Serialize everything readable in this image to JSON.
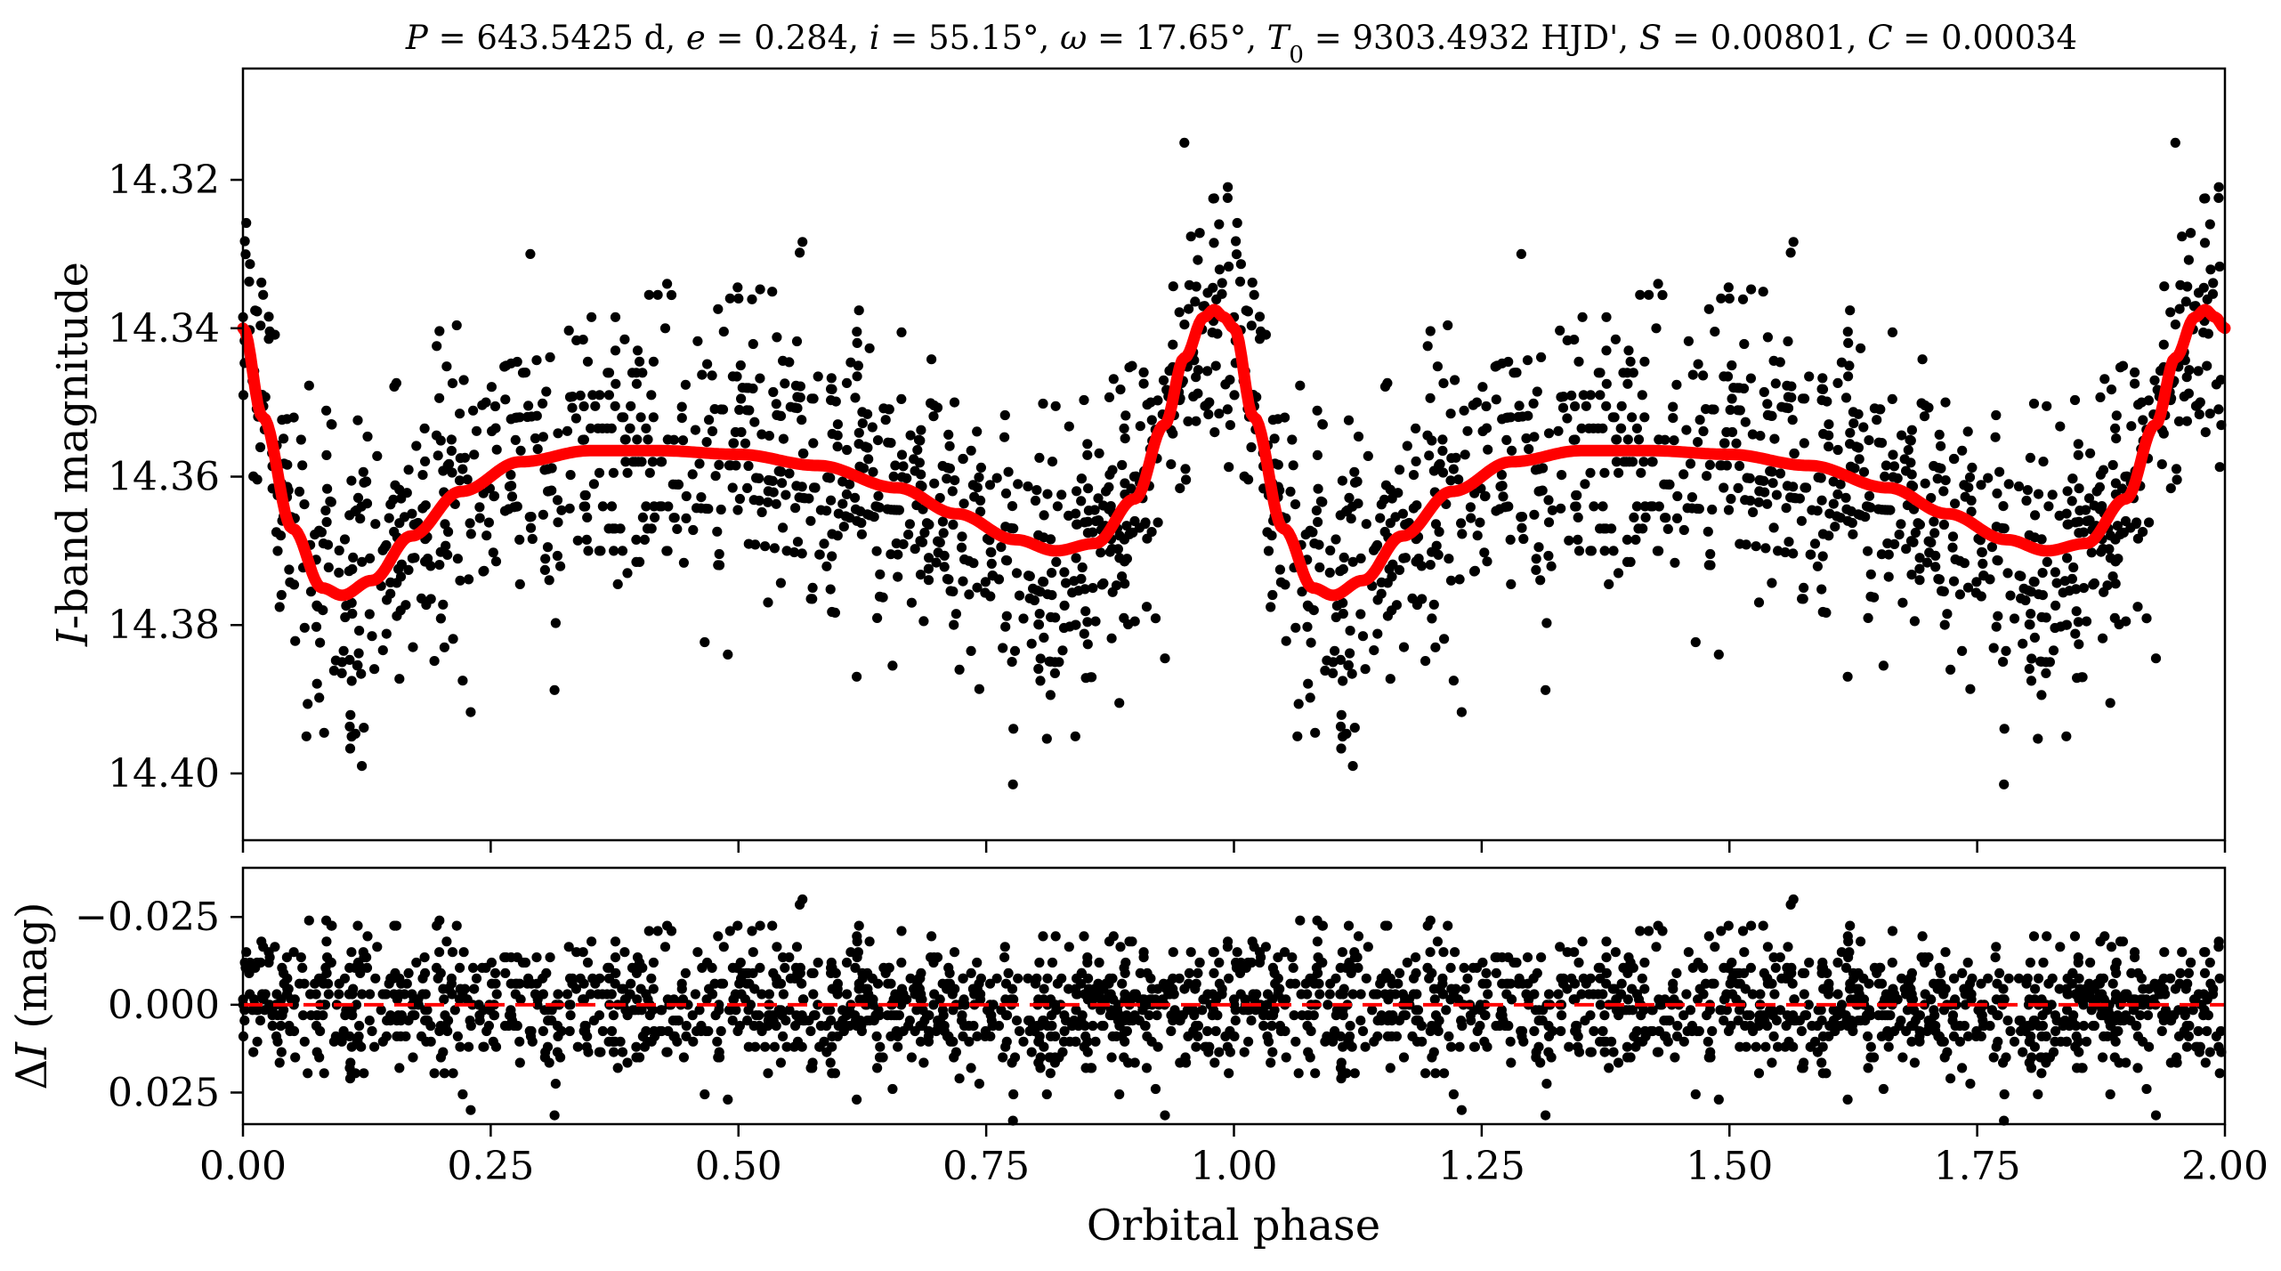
{
  "chart_data": [
    {
      "type": "scatter",
      "panel": "top",
      "title": "P = 643.5425 d, e = 0.284, i = 55.15°, ω = 17.65°, T0 = 9303.4932 HJD', S = 0.00801, C = 0.00034",
      "title_parts": [
        {
          "t": "P",
          "i": true
        },
        {
          "t": " = 643.5425 d, "
        },
        {
          "t": "e",
          "i": true
        },
        {
          "t": " = 0.284, "
        },
        {
          "t": "i",
          "i": true
        },
        {
          "t": " = 55.15°, "
        },
        {
          "t": "ω",
          "i": true
        },
        {
          "t": " = 17.65°, "
        },
        {
          "t": "T",
          "i": true
        },
        {
          "t": "0",
          "sub": true
        },
        {
          "t": " = 9303.4932 HJD', "
        },
        {
          "t": "S",
          "i": true
        },
        {
          "t": " = 0.00801, "
        },
        {
          "t": "C",
          "i": true
        },
        {
          "t": " = 0.00034"
        }
      ],
      "xlabel": "",
      "ylabel": "I-band magnitude",
      "ylabel_parts": [
        {
          "t": "I",
          "i": true
        },
        {
          "t": "-band magnitude"
        }
      ],
      "xlim": [
        0.0,
        2.0
      ],
      "ylim": [
        14.409,
        14.305
      ],
      "y_inverted": true,
      "yticks": [
        "14.32",
        "14.34",
        "14.36",
        "14.38",
        "14.40"
      ],
      "ytick_values": [
        14.32,
        14.34,
        14.36,
        14.38,
        14.4
      ],
      "xticks_unlabeled": [
        0.0,
        0.25,
        0.5,
        0.75,
        1.0,
        1.25,
        1.5,
        1.75,
        2.0
      ],
      "grid": false,
      "data_points_description_omitted": false,
      "series": [
        {
          "name": "",
          "kind": "points",
          "color": "#000000",
          "n_points_per_cycle": 1100,
          "noise_sigma": 0.0095,
          "seed": 7,
          "outliers": [
            [
              0.95,
              14.315
            ],
            [
              1.95,
              14.315
            ],
            [
              0.12,
              14.399
            ],
            [
              1.12,
              14.399
            ],
            [
              0.064,
              14.395
            ],
            [
              1.064,
              14.395
            ],
            [
              0.84,
              14.395
            ],
            [
              1.84,
              14.395
            ],
            [
              0.29,
              14.33
            ],
            [
              1.29,
              14.33
            ],
            [
              0.5,
              14.336
            ],
            [
              1.5,
              14.336
            ]
          ]
        },
        {
          "name": "",
          "kind": "model",
          "color": "#ff0000",
          "line_width_note": "thick",
          "phase": [
            0.0,
            0.02,
            0.05,
            0.08,
            0.1,
            0.13,
            0.17,
            0.22,
            0.28,
            0.35,
            0.42,
            0.5,
            0.58,
            0.66,
            0.72,
            0.78,
            0.82,
            0.86,
            0.9,
            0.93,
            0.95,
            0.97,
            0.98,
            0.99,
            1.0
          ],
          "magnitude": [
            14.34,
            14.352,
            14.367,
            14.375,
            14.376,
            14.374,
            14.368,
            14.362,
            14.358,
            14.3565,
            14.3565,
            14.357,
            14.3585,
            14.3615,
            14.365,
            14.3685,
            14.37,
            14.369,
            14.363,
            14.353,
            14.344,
            14.3385,
            14.3375,
            14.3385,
            14.34
          ]
        }
      ]
    },
    {
      "type": "scatter",
      "panel": "bottom",
      "xlabel": "Orbital phase",
      "ylabel": "ΔI (mag)",
      "ylabel_parts": [
        {
          "t": "Δ"
        },
        {
          "t": "I",
          "i": true
        },
        {
          "t": " (mag)"
        }
      ],
      "xlim": [
        0.0,
        2.0
      ],
      "ylim": [
        0.034,
        -0.039
      ],
      "y_inverted": true,
      "xticks": [
        "0.00",
        "0.25",
        "0.50",
        "0.75",
        "1.00",
        "1.25",
        "1.50",
        "1.75",
        "2.00"
      ],
      "xtick_values": [
        0.0,
        0.25,
        0.5,
        0.75,
        1.0,
        1.25,
        1.5,
        1.75,
        2.0
      ],
      "yticks": [
        "−0.025",
        "0.000",
        "0.025"
      ],
      "ytick_values": [
        -0.025,
        0.0,
        0.025
      ],
      "grid": false,
      "series": [
        {
          "name": "",
          "kind": "residual-points",
          "color": "#000000",
          "noise_sigma": 0.0095,
          "seed": 7
        },
        {
          "name": "",
          "kind": "zero-line",
          "color": "#ff0000",
          "style": "dashed",
          "y": 0.0
        }
      ]
    }
  ]
}
